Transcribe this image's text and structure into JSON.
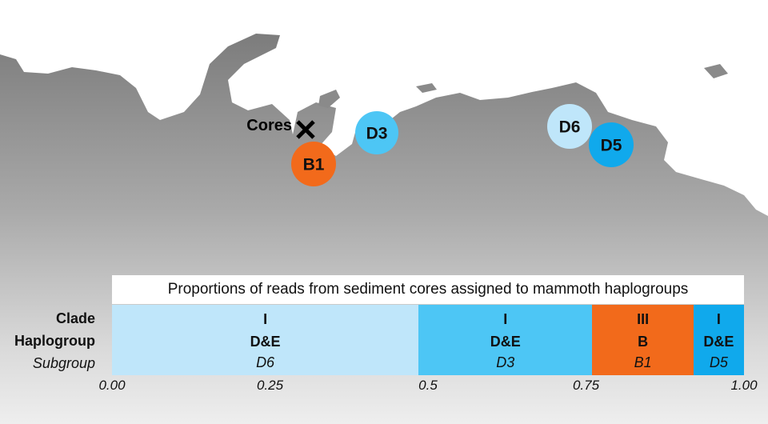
{
  "map": {
    "cores_label": "Cores",
    "cores_marker": "cross-icon",
    "markers": [
      {
        "label": "B1",
        "color": "#f26a1b"
      },
      {
        "label": "D3",
        "color": "#4dc6f5"
      },
      {
        "label": "D6",
        "color": "#bfe6fa"
      },
      {
        "label": "D5",
        "color": "#10a9ec"
      }
    ]
  },
  "chart_data": {
    "type": "stacked-bar",
    "title": "Proportions of reads from sediment cores assigned to mammoth haplogroups",
    "row_labels": {
      "clade": "Clade",
      "haplogroup": "Haplogroup",
      "subgroup": "Subgroup"
    },
    "segments": [
      {
        "clade": "I",
        "haplogroup": "D&E",
        "subgroup": "D6",
        "start": 0.0,
        "end": 0.485,
        "color": "#bfe6fa"
      },
      {
        "clade": "I",
        "haplogroup": "D&E",
        "subgroup": "D3",
        "start": 0.485,
        "end": 0.76,
        "color": "#4dc6f5"
      },
      {
        "clade": "III",
        "haplogroup": "B",
        "subgroup": "B1",
        "start": 0.76,
        "end": 0.92,
        "color": "#f26a1b"
      },
      {
        "clade": "I",
        "haplogroup": "D&E",
        "subgroup": "D5",
        "start": 0.92,
        "end": 1.0,
        "color": "#10a9ec"
      }
    ],
    "xlim": [
      0,
      1
    ],
    "ticks": [
      {
        "value": 0.0,
        "label": "0.00"
      },
      {
        "value": 0.25,
        "label": "0.25"
      },
      {
        "value": 0.5,
        "label": "0.5"
      },
      {
        "value": 0.75,
        "label": "0.75"
      },
      {
        "value": 1.0,
        "label": "1.00"
      }
    ]
  }
}
